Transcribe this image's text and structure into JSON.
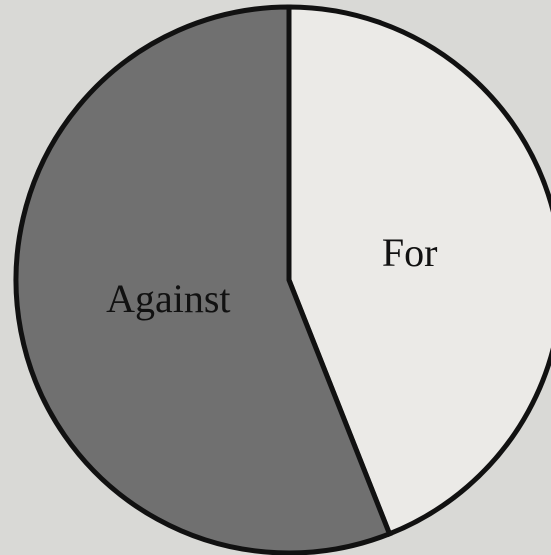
{
  "chart_data": {
    "type": "pie",
    "categories": [
      "For",
      "Against"
    ],
    "values": [
      44,
      56
    ],
    "colors": [
      "#ebeae7",
      "#707070"
    ]
  }
}
